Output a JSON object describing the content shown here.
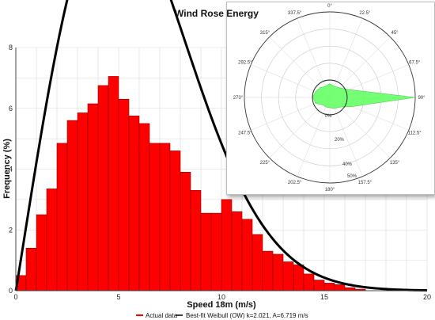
{
  "chart_data": [
    {
      "type": "bar",
      "xlabel": "Speed 18m  (m/s)",
      "ylabel": "Frequency (%)",
      "xlim": [
        0,
        20
      ],
      "ylim": [
        0,
        8
      ],
      "xticks": [
        "0",
        "5",
        "10",
        "15",
        "20"
      ],
      "yticks": [
        "0",
        "2",
        "4",
        "6",
        "8"
      ],
      "grid": true,
      "bin_width": 0.5,
      "series": [
        {
          "name": "Actual data",
          "color": "#ff0000",
          "x": [
            0,
            0.5,
            1,
            1.5,
            2,
            2.5,
            3,
            3.5,
            4,
            4.5,
            5,
            5.5,
            6,
            6.5,
            7,
            7.5,
            8,
            8.5,
            9,
            9.5,
            10,
            10.5,
            11,
            11.5,
            12,
            12.5,
            13,
            13.5,
            14,
            14.5,
            15,
            15.5,
            16,
            16.5
          ],
          "values": [
            0.5,
            1.4,
            2.5,
            3.35,
            4.85,
            5.6,
            5.85,
            6.15,
            6.75,
            7.05,
            6.3,
            5.75,
            5.5,
            4.85,
            4.85,
            4.6,
            3.9,
            3.3,
            2.55,
            2.55,
            3.0,
            2.6,
            2.35,
            1.85,
            1.3,
            1.2,
            0.95,
            0.85,
            0.55,
            0.35,
            0.25,
            0.2,
            0.1,
            0.05
          ]
        },
        {
          "name": "Best-fit Weibull (OW) k=2.021, A=6.719 m/s",
          "type": "line",
          "color": "#000000",
          "weibull_k": 2.021,
          "weibull_A": 6.719
        }
      ],
      "legend_position": "bottom"
    },
    {
      "type": "area",
      "subtype": "polar",
      "title": "Wind Rose Energy",
      "directions": [
        "0°",
        "22.5°",
        "45°",
        "67.5°",
        "90°",
        "112.5°",
        "135°",
        "157.5°",
        "180°",
        "202.5°",
        "225°",
        "247.5°",
        "270°",
        "292.5°",
        "315°",
        "337.5°"
      ],
      "radial_labels": [
        "0%",
        "20%",
        "40%",
        "50%"
      ],
      "rmax": 50,
      "color": "#66ff66",
      "values": [
        8,
        7,
        8,
        12,
        50,
        14,
        8,
        7,
        6,
        6,
        6,
        9,
        10,
        9,
        8,
        7
      ]
    }
  ]
}
